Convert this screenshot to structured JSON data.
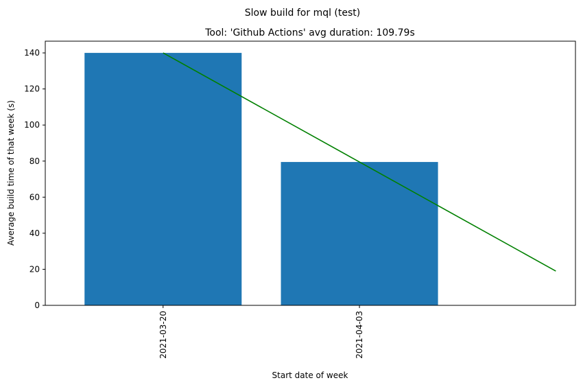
{
  "chart_data": {
    "type": "bar",
    "suptitle": "Slow build for mql (test)",
    "title": "Tool: 'Github Actions' avg duration: 109.79s",
    "xlabel": "Start date of week",
    "ylabel": "Average build time of that week (s)",
    "categories": [
      "2021-03-20",
      "2021-04-03"
    ],
    "values": [
      140,
      79.5
    ],
    "ylim": [
      0,
      146.5
    ],
    "yticks": [
      0,
      20,
      40,
      60,
      80,
      100,
      120,
      140
    ],
    "bar_color": "#1f77b4",
    "trend_line": {
      "color": "#008000",
      "points": [
        {
          "x_index": 0,
          "y": 140
        },
        {
          "x_index": 1,
          "y": 79.5
        },
        {
          "x_index": 2,
          "y": 19
        }
      ]
    },
    "grid": false,
    "legend": "none"
  }
}
